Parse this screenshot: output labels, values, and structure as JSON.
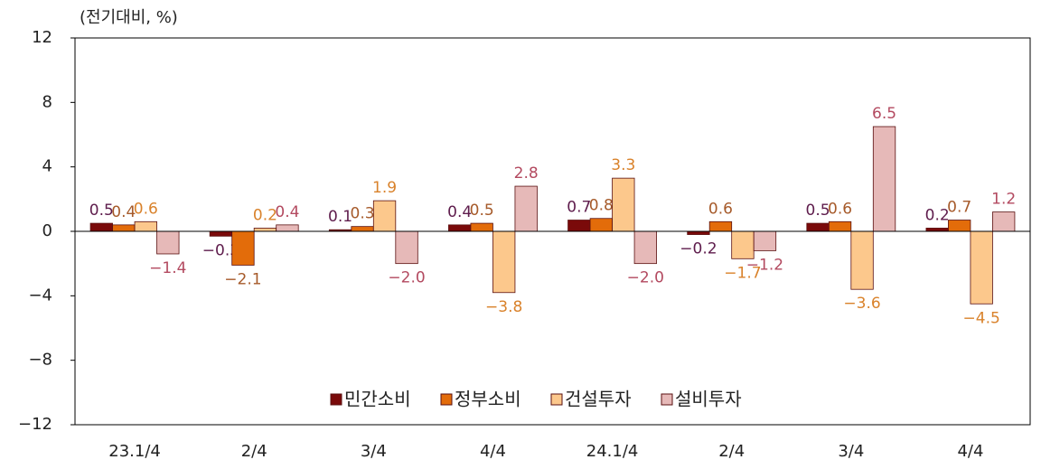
{
  "chart_data": {
    "type": "bar",
    "ylabel": "(전기대비, %)",
    "categories": [
      "23.1/4",
      "2/4",
      "3/4",
      "4/4",
      "24.1/4",
      "2/4",
      "3/4",
      "4/4"
    ],
    "series": [
      {
        "name": "민간소비",
        "color": "#7a0a0a",
        "label_color": "#5e1c4c",
        "values": [
          0.5,
          -0.3,
          0.1,
          0.4,
          0.7,
          -0.2,
          0.5,
          0.2
        ],
        "value_labels": [
          "0.5",
          "−0.3",
          "0.1",
          "0.4",
          "0.7",
          "−0.2",
          "0.5",
          "0.2"
        ]
      },
      {
        "name": "정부소비",
        "color": "#e36c0a",
        "label_color": "#a65a2a",
        "values": [
          0.4,
          -2.1,
          0.3,
          0.5,
          0.8,
          0.6,
          0.6,
          0.7
        ],
        "value_labels": [
          "0.4",
          "−2.1",
          "0.3",
          "0.5",
          "0.8",
          "0.6",
          "0.6",
          "0.7"
        ]
      },
      {
        "name": "건설투자",
        "color": "#fcc88c",
        "label_color": "#d9822b",
        "values": [
          0.6,
          0.2,
          1.9,
          -3.8,
          3.3,
          -1.7,
          -3.6,
          -4.5
        ],
        "value_labels": [
          "0.6",
          "0.2",
          "1.9",
          "−3.8",
          "3.3",
          "−1.7",
          "−3.6",
          "−4.5"
        ]
      },
      {
        "name": "설비투자",
        "color": "#e6b9b8",
        "label_color": "#b34a60",
        "values": [
          -1.4,
          0.4,
          -2.0,
          2.8,
          -2.0,
          -1.2,
          6.5,
          1.2
        ],
        "value_labels": [
          "−1.4",
          "0.4",
          "−2.0",
          "2.8",
          "−2.0",
          "−1.2",
          "6.5",
          "1.2"
        ]
      }
    ],
    "ylim": [
      -12,
      12
    ],
    "yticks": [
      {
        "value": -12,
        "label": "−12"
      },
      {
        "value": -8,
        "label": "−8"
      },
      {
        "value": -4,
        "label": "−4"
      },
      0,
      4,
      8,
      12
    ],
    "grid": false,
    "legend": "bottom"
  }
}
